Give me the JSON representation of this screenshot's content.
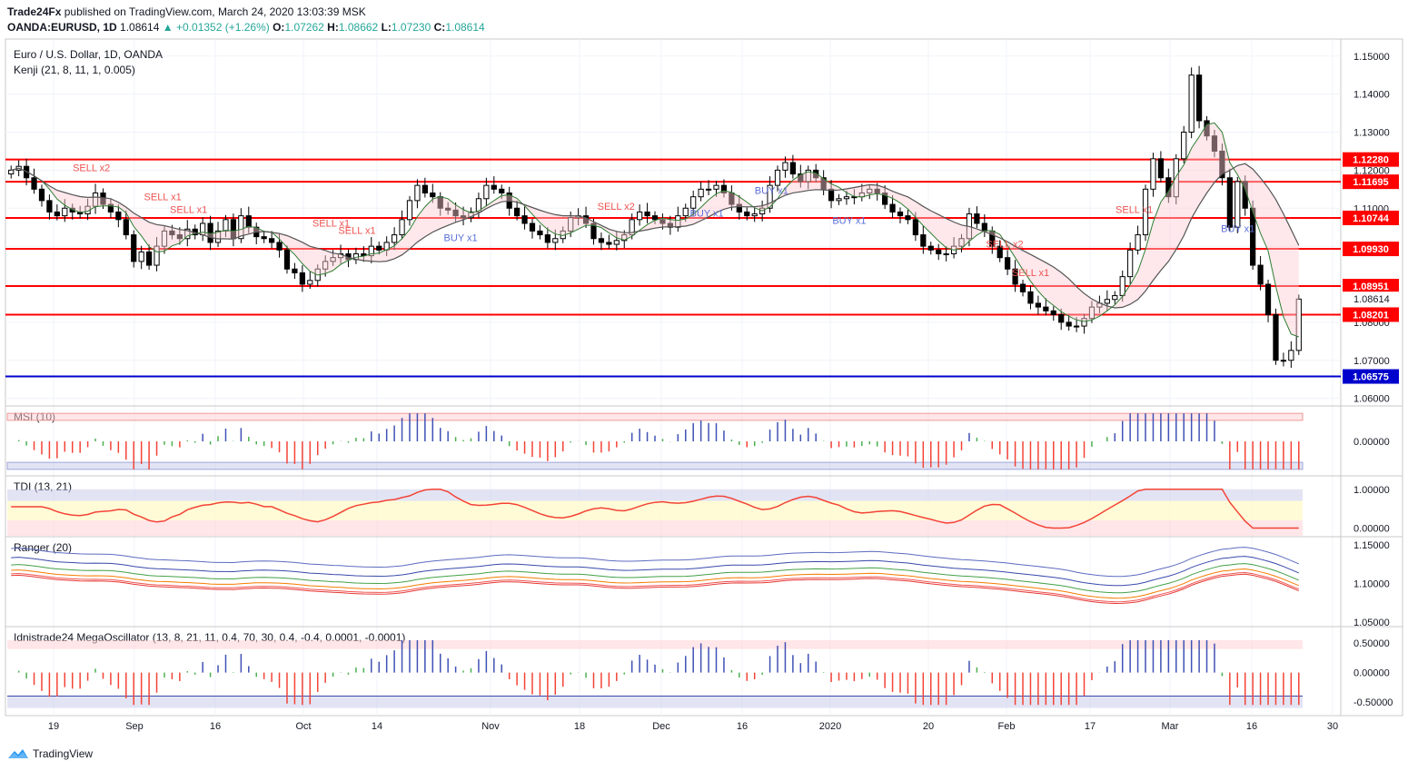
{
  "header": {
    "publisher": "Trade24Fx",
    "published_text": "published on TradingView.com, March 24, 2020 13:03:39 MSK",
    "symbol": "OANDA:EURUSD, 1D",
    "last": "1.08614",
    "change": "+0.01352 (+1.26%)",
    "open_label": "O:",
    "open": "1.07262",
    "high_label": "H:",
    "high": "1.08662",
    "low_label": "L:",
    "low": "1.07230",
    "close_label": "C:",
    "close": "1.08614"
  },
  "colors": {
    "bull_candle": "#ffffff",
    "bear_candle": "#000000",
    "level_red": "#ff0000",
    "level_blue": "#0000cc",
    "sell_text": "#ef5350",
    "buy_text": "#5b6fd6",
    "positive": "#26a69a"
  },
  "footer": {
    "brand": "TradingView",
    "brand_icon": "tradingview-logo-icon"
  },
  "chart_data": {
    "type": "candlestick",
    "title": "Euro / U.S. Dollar, 1D, OANDA",
    "subtitle": "Kenji (21, 8, 11, 1, 0.005)",
    "x_tick_labels": [
      "19",
      "Sep",
      "16",
      "Oct",
      "14",
      "Nov",
      "18",
      "Dec",
      "16",
      "2020",
      "20",
      "Feb",
      "17",
      "Mar",
      "16",
      "30"
    ],
    "y_tick_labels": [
      "1.15000",
      "1.14000",
      "1.13000",
      "1.12000",
      "1.11000",
      "1.10000",
      "1.09000",
      "1.08000",
      "1.07000",
      "1.06000"
    ],
    "ylim": [
      1.058,
      1.154
    ],
    "levels": [
      {
        "value": 1.1228,
        "label": "1.12280",
        "color": "#ff0000"
      },
      {
        "value": 1.11695,
        "label": "1.11695",
        "color": "#ff0000"
      },
      {
        "value": 1.10744,
        "label": "1.10744",
        "color": "#ff0000"
      },
      {
        "value": 1.0993,
        "label": "1.09930",
        "color": "#ff0000"
      },
      {
        "value": 1.08951,
        "label": "1.08951",
        "color": "#ff0000"
      },
      {
        "value": 1.08201,
        "label": "1.08201",
        "color": "#ff0000"
      },
      {
        "value": 1.06575,
        "label": "1.06575",
        "color": "#0000cc"
      }
    ],
    "last_price_label": "1.08614",
    "closes": [
      1.12,
      1.121,
      1.118,
      1.115,
      1.112,
      1.109,
      1.108,
      1.11,
      1.109,
      1.1085,
      1.1105,
      1.114,
      1.111,
      1.109,
      1.107,
      1.103,
      1.096,
      1.0985,
      1.095,
      1.1,
      1.104,
      1.103,
      1.102,
      1.1045,
      1.103,
      1.106,
      1.101,
      1.104,
      1.107,
      1.102,
      1.108,
      1.105,
      1.1025,
      1.102,
      1.101,
      1.099,
      1.094,
      1.093,
      1.09,
      1.091,
      1.094,
      1.096,
      1.097,
      1.098,
      1.0965,
      1.098,
      1.0975,
      1.1,
      1.099,
      1.101,
      1.103,
      1.107,
      1.112,
      1.116,
      1.114,
      1.113,
      1.11,
      1.1095,
      1.108,
      1.1075,
      1.109,
      1.1125,
      1.116,
      1.115,
      1.114,
      1.11,
      1.108,
      1.106,
      1.104,
      1.103,
      1.101,
      1.102,
      1.104,
      1.1075,
      1.108,
      1.106,
      1.102,
      1.101,
      1.1005,
      1.1015,
      1.103,
      1.107,
      1.109,
      1.108,
      1.107,
      1.106,
      1.105,
      1.108,
      1.11,
      1.113,
      1.115,
      1.115,
      1.116,
      1.114,
      1.111,
      1.109,
      1.108,
      1.1085,
      1.11,
      1.116,
      1.12,
      1.122,
      1.119,
      1.117,
      1.12,
      1.118,
      1.115,
      1.112,
      1.1125,
      1.113,
      1.113,
      1.114,
      1.115,
      1.114,
      1.111,
      1.109,
      1.108,
      1.107,
      1.103,
      1.1,
      1.099,
      1.098,
      1.098,
      1.1,
      1.102,
      1.1085,
      1.106,
      1.104,
      1.1,
      1.097,
      1.094,
      1.09,
      1.088,
      1.085,
      1.084,
      1.083,
      1.082,
      1.08,
      1.079,
      1.079,
      1.081,
      1.084,
      1.085,
      1.086,
      1.087,
      1.092,
      1.099,
      1.103,
      1.115,
      1.123,
      1.118,
      1.113,
      1.123,
      1.13,
      1.145,
      1.133,
      1.129,
      1.125,
      1.118,
      1.105,
      1.117,
      1.11,
      1.095,
      1.09,
      1.082,
      1.07,
      1.07,
      1.0726,
      1.0861
    ],
    "sell_signals": [
      {
        "label": "SELL x2",
        "text_x": 0.065
      },
      {
        "label": "SELL x1",
        "text_x": 0.12
      },
      {
        "label": "SELL x1",
        "text_x": 0.14
      },
      {
        "label": "SELL x1",
        "text_x": 0.25
      },
      {
        "label": "SELL x1",
        "text_x": 0.27
      },
      {
        "label": "SELL x2",
        "text_x": 0.47
      },
      {
        "label": "SELL x2",
        "text_x": 0.77
      },
      {
        "label": "SELL x1",
        "text_x": 0.79
      },
      {
        "label": "SELL x1",
        "text_x": 0.87
      }
    ],
    "buy_signals": [
      {
        "label": "BUY x1",
        "text_x": 0.35
      },
      {
        "label": "BUY x1",
        "text_x": 0.54
      },
      {
        "label": "BUY x1",
        "text_x": 0.59
      },
      {
        "label": "BUY x1",
        "text_x": 0.65
      },
      {
        "label": "BUY x1",
        "text_x": 0.95
      }
    ],
    "indicators": [
      {
        "name": "MSI (10)",
        "y_tick_labels": [
          "0.00000"
        ],
        "ylim": [
          -1.2,
          1.2
        ]
      },
      {
        "name": "TDI (13, 21)",
        "y_tick_labels": [
          "1.00000",
          "0.00000"
        ],
        "ylim": [
          -0.2,
          1.3
        ]
      },
      {
        "name": "Ranger (20)",
        "y_tick_labels": [
          "1.15000",
          "1.10000",
          "1.05000"
        ],
        "ylim": [
          1.045,
          1.158
        ]
      },
      {
        "name": "Idnistrade24 MegaOscillator (13, 8, 21, 11, 0.4, 70, 30, 0.4, -0.4, 0.0001, -0.0001)",
        "y_tick_labels": [
          "0.50000",
          "0.00000",
          "-0.50000"
        ],
        "ylim": [
          -0.7,
          0.75
        ]
      }
    ]
  }
}
